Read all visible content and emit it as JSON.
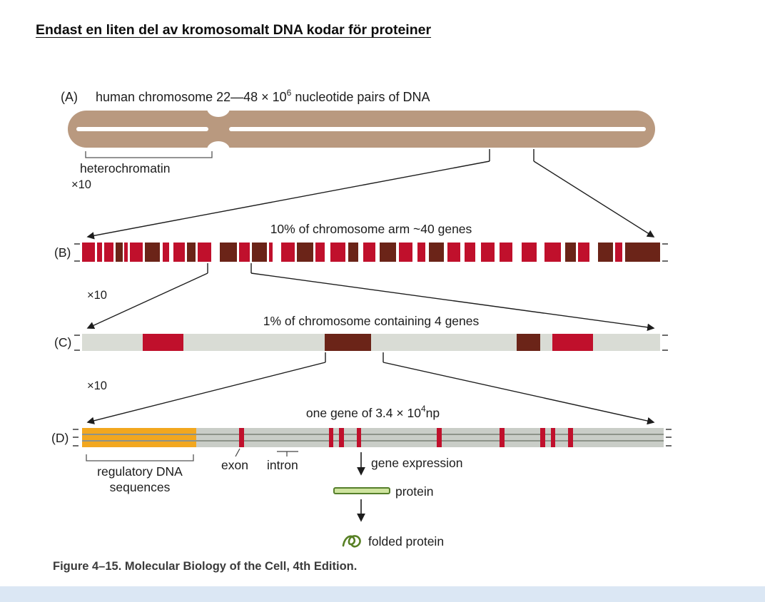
{
  "page": {
    "title": "Endast en liten del av kromosomalt DNA kodar för proteiner",
    "caption": "Figure 4–15. Molecular Biology of the Cell, 4th Edition."
  },
  "panels": {
    "a": {
      "label": "(A)",
      "heading_prefix": "human chromosome 22—48 × 10",
      "heading_exponent": "6",
      "heading_suffix": " nucleotide pairs of DNA",
      "heterochromatin": "heterochromatin"
    },
    "b": {
      "label": "(B)",
      "zoom": "×10",
      "heading": "10% of chromosome arm ~40 genes"
    },
    "c": {
      "label": "(C)",
      "zoom": "×10",
      "heading": "1% of chromosome containing 4 genes"
    },
    "d": {
      "label": "(D)",
      "zoom": "×10",
      "heading_prefix": "one gene of 3.4 × 10",
      "heading_exponent": "4",
      "heading_suffix": "np",
      "regulatory_line1": "regulatory DNA",
      "regulatory_line2": "sequences",
      "exon": "exon",
      "intron": "intron",
      "gene_expression": "gene expression",
      "protein": "protein",
      "folded_protein": "folded protein"
    }
  },
  "colors": {
    "chromosome_tan": "#b9997f",
    "gene_red": "#c0102c",
    "gene_dark": "#6b2418",
    "bar_c_bg": "#d9dcd5",
    "bar_d_bg": "#c9cdc7",
    "regulatory_orange": "#f2a71f",
    "protein_green_fill": "#cfe49f",
    "protein_green_stroke": "#567f2b",
    "footer_strip_blue": "#dbe7f4"
  },
  "bars": {
    "b_segments": [
      [
        0.0,
        0.022,
        "red"
      ],
      [
        0.026,
        0.008,
        "red"
      ],
      [
        0.038,
        0.016,
        "red"
      ],
      [
        0.058,
        0.012,
        "dark"
      ],
      [
        0.073,
        0.006,
        "red"
      ],
      [
        0.083,
        0.022,
        "red"
      ],
      [
        0.109,
        0.026,
        "dark"
      ],
      [
        0.139,
        0.012,
        "red"
      ],
      [
        0.158,
        0.02,
        "red"
      ],
      [
        0.182,
        0.014,
        "dark"
      ],
      [
        0.2,
        0.024,
        "red"
      ],
      [
        0.238,
        0.03,
        "dark"
      ],
      [
        0.272,
        0.018,
        "red"
      ],
      [
        0.294,
        0.026,
        "dark"
      ],
      [
        0.324,
        0.006,
        "red"
      ],
      [
        0.344,
        0.024,
        "red"
      ],
      [
        0.372,
        0.028,
        "dark"
      ],
      [
        0.404,
        0.016,
        "red"
      ],
      [
        0.43,
        0.026,
        "red"
      ],
      [
        0.46,
        0.018,
        "dark"
      ],
      [
        0.486,
        0.022,
        "red"
      ],
      [
        0.515,
        0.028,
        "dark"
      ],
      [
        0.548,
        0.024,
        "red"
      ],
      [
        0.58,
        0.014,
        "red"
      ],
      [
        0.6,
        0.026,
        "dark"
      ],
      [
        0.632,
        0.022,
        "red"
      ],
      [
        0.662,
        0.018,
        "red"
      ],
      [
        0.69,
        0.024,
        "red"
      ],
      [
        0.722,
        0.022,
        "red"
      ],
      [
        0.76,
        0.026,
        "red"
      ],
      [
        0.8,
        0.028,
        "red"
      ],
      [
        0.836,
        0.018,
        "dark"
      ],
      [
        0.858,
        0.02,
        "red"
      ],
      [
        0.892,
        0.026,
        "dark"
      ],
      [
        0.922,
        0.012,
        "red"
      ],
      [
        0.94,
        0.06,
        "dark"
      ]
    ],
    "c_segments": [
      [
        0.105,
        0.07,
        "red"
      ],
      [
        0.42,
        0.08,
        "dark"
      ],
      [
        0.752,
        0.041,
        "dark"
      ],
      [
        0.813,
        0.071,
        "red"
      ]
    ],
    "d": {
      "regulatory": [
        0.0,
        0.196
      ],
      "exon_positions": [
        0.27,
        0.424,
        0.442,
        0.472,
        0.61,
        0.718,
        0.788,
        0.806,
        0.836
      ],
      "exon_width": 0.008
    }
  }
}
